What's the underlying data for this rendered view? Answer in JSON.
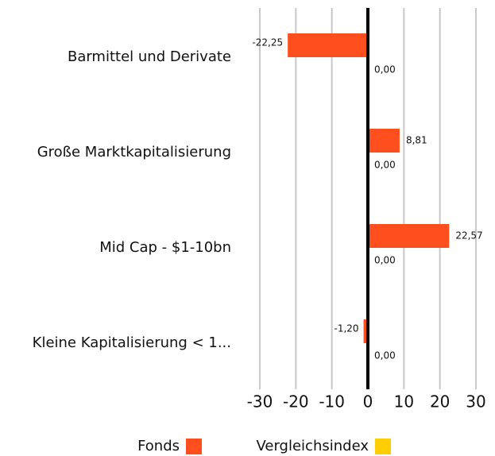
{
  "chart_data": {
    "type": "bar",
    "orientation": "horizontal",
    "categories": [
      "Barmittel und Derivate",
      "Große Marktkapitalisierung",
      "Mid Cap - $1-10bn",
      "Kleine Kapitalisierung < 1..."
    ],
    "series": [
      {
        "name": "Fonds",
        "color": "#ff4f1f",
        "values": [
          -22.25,
          8.81,
          22.57,
          -1.2
        ],
        "value_labels": [
          "-22,25",
          "8,81",
          "22,57",
          "-1,20"
        ]
      },
      {
        "name": "Vergleichsindex",
        "color": "#ffce00",
        "values": [
          0,
          0,
          0,
          0
        ],
        "value_labels": [
          "0,00",
          "0,00",
          "0,00",
          "0,00"
        ]
      }
    ],
    "xlim": [
      -30,
      30
    ],
    "xticks": [
      -30,
      -20,
      -10,
      0,
      10,
      20,
      30
    ],
    "grid": true,
    "legend": "bottom"
  }
}
